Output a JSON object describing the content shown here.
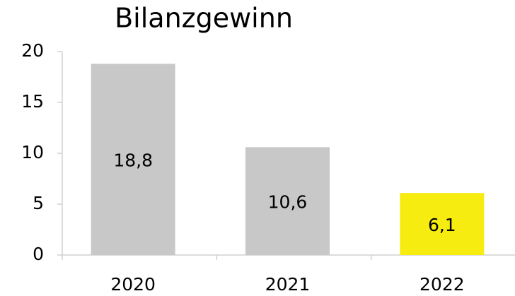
{
  "chart_data": {
    "type": "bar",
    "title": "Bilanzgewinn",
    "categories": [
      "2020",
      "2021",
      "2022"
    ],
    "values": [
      18.8,
      10.6,
      6.1
    ],
    "value_labels": [
      "18,8",
      "10,6",
      "6,1"
    ],
    "colors": [
      "#c8c8c8",
      "#c8c8c8",
      "#f7ec0f"
    ],
    "ylim": [
      0,
      20
    ],
    "yticks": [
      0,
      5,
      10,
      15,
      20
    ]
  }
}
